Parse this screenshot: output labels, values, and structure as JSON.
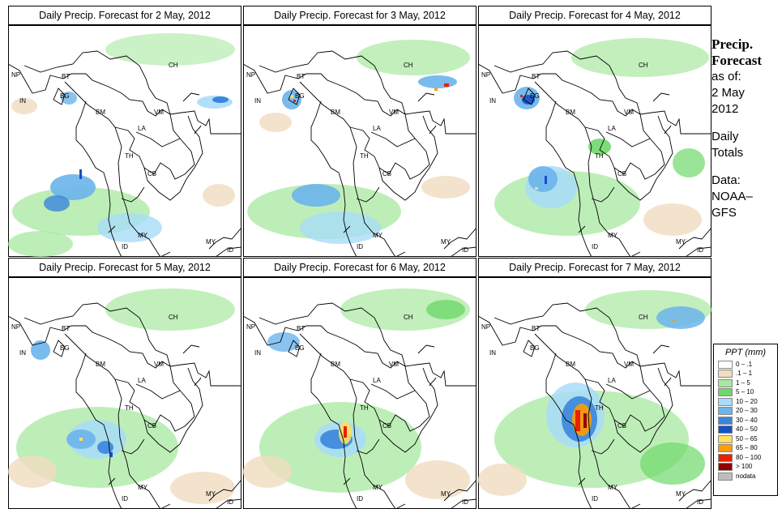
{
  "panels": [
    {
      "title": "Daily Precip. Forecast for  2 May, 2012"
    },
    {
      "title": "Daily Precip. Forecast for  3 May, 2012"
    },
    {
      "title": "Daily Precip. Forecast for  4 May, 2012"
    },
    {
      "title": "Daily Precip. Forecast for  5 May, 2012"
    },
    {
      "title": "Daily Precip. Forecast for  6 May, 2012"
    },
    {
      "title": "Daily Precip. Forecast for  7 May, 2012"
    }
  ],
  "sidebar": {
    "title_line1": "Precip.",
    "title_line2": "Forecast",
    "asof_line1": "as of:",
    "asof_line2": "2 May",
    "asof_line3": "2012",
    "daily_line1": "Daily",
    "daily_line2": "Totals",
    "data_line1": "Data:",
    "data_line2": "NOAA–",
    "data_line3": "GFS"
  },
  "map_labels": [
    "NP",
    "BT",
    "BG",
    "IN",
    "BM",
    "CH",
    "VM",
    "LA",
    "TH",
    "CB",
    "MY",
    "ID",
    "MY",
    "ID"
  ],
  "legend": {
    "title": "PPT (mm)",
    "items": [
      {
        "label": "0 – .1",
        "color": "#ffffff"
      },
      {
        "label": ".1 – 1",
        "color": "#f0dcc0"
      },
      {
        "label": "1 – 5",
        "color": "#a8e8a0"
      },
      {
        "label": "5 – 10",
        "color": "#6ed86a"
      },
      {
        "label": "10 – 20",
        "color": "#a8dcf8"
      },
      {
        "label": "20 – 30",
        "color": "#6cb4ec"
      },
      {
        "label": "30 – 40",
        "color": "#3a86dc"
      },
      {
        "label": "40 – 50",
        "color": "#1450c8"
      },
      {
        "label": "50 – 65",
        "color": "#ffe060"
      },
      {
        "label": "65 – 80",
        "color": "#ff9c00"
      },
      {
        "label": "80 – 100",
        "color": "#e82000"
      },
      {
        "label": "> 100",
        "color": "#900000"
      },
      {
        "label": "nodata",
        "color": "#bdbdbd"
      }
    ]
  }
}
